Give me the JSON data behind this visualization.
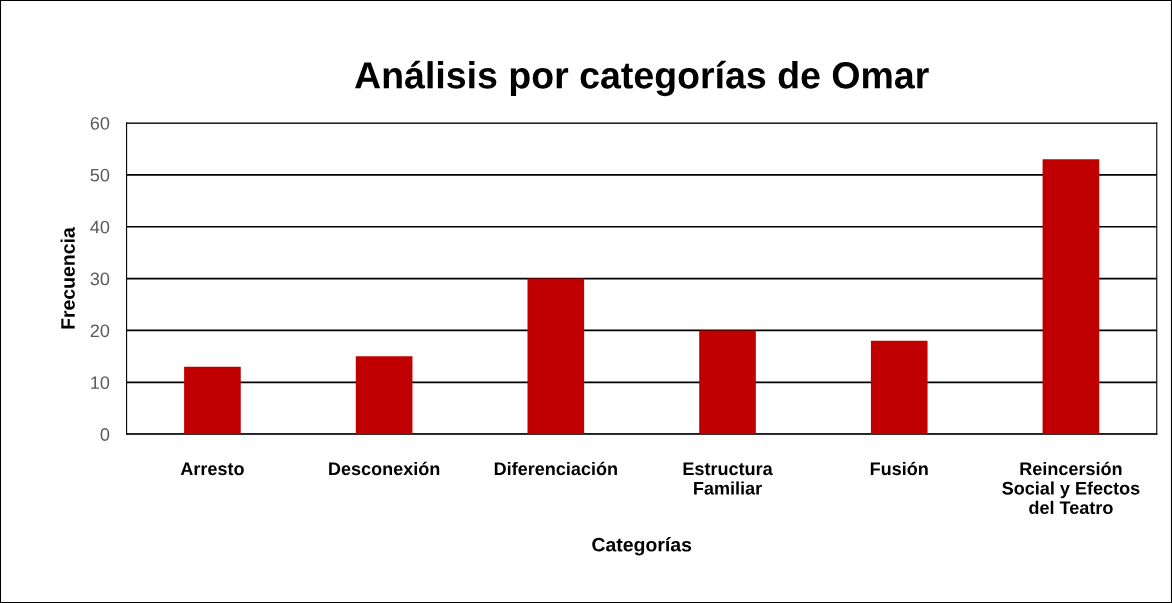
{
  "chart_data": {
    "type": "bar",
    "title": "Análisis por categorías de Omar",
    "xlabel": "Categorías",
    "ylabel": "Frecuencia",
    "categories": [
      "Arresto",
      "Desconexión",
      "Diferenciación",
      "Estructura\nFamiliar",
      "Fusión",
      "Reincersión\nSocial y Efectos\ndel Teatro"
    ],
    "values": [
      13,
      15,
      30,
      20,
      18,
      53
    ],
    "color": "#c00000",
    "ylim": [
      0,
      60
    ],
    "yticks": [
      0,
      10,
      20,
      30,
      40,
      50,
      60
    ],
    "grid": "y",
    "legend": false
  }
}
